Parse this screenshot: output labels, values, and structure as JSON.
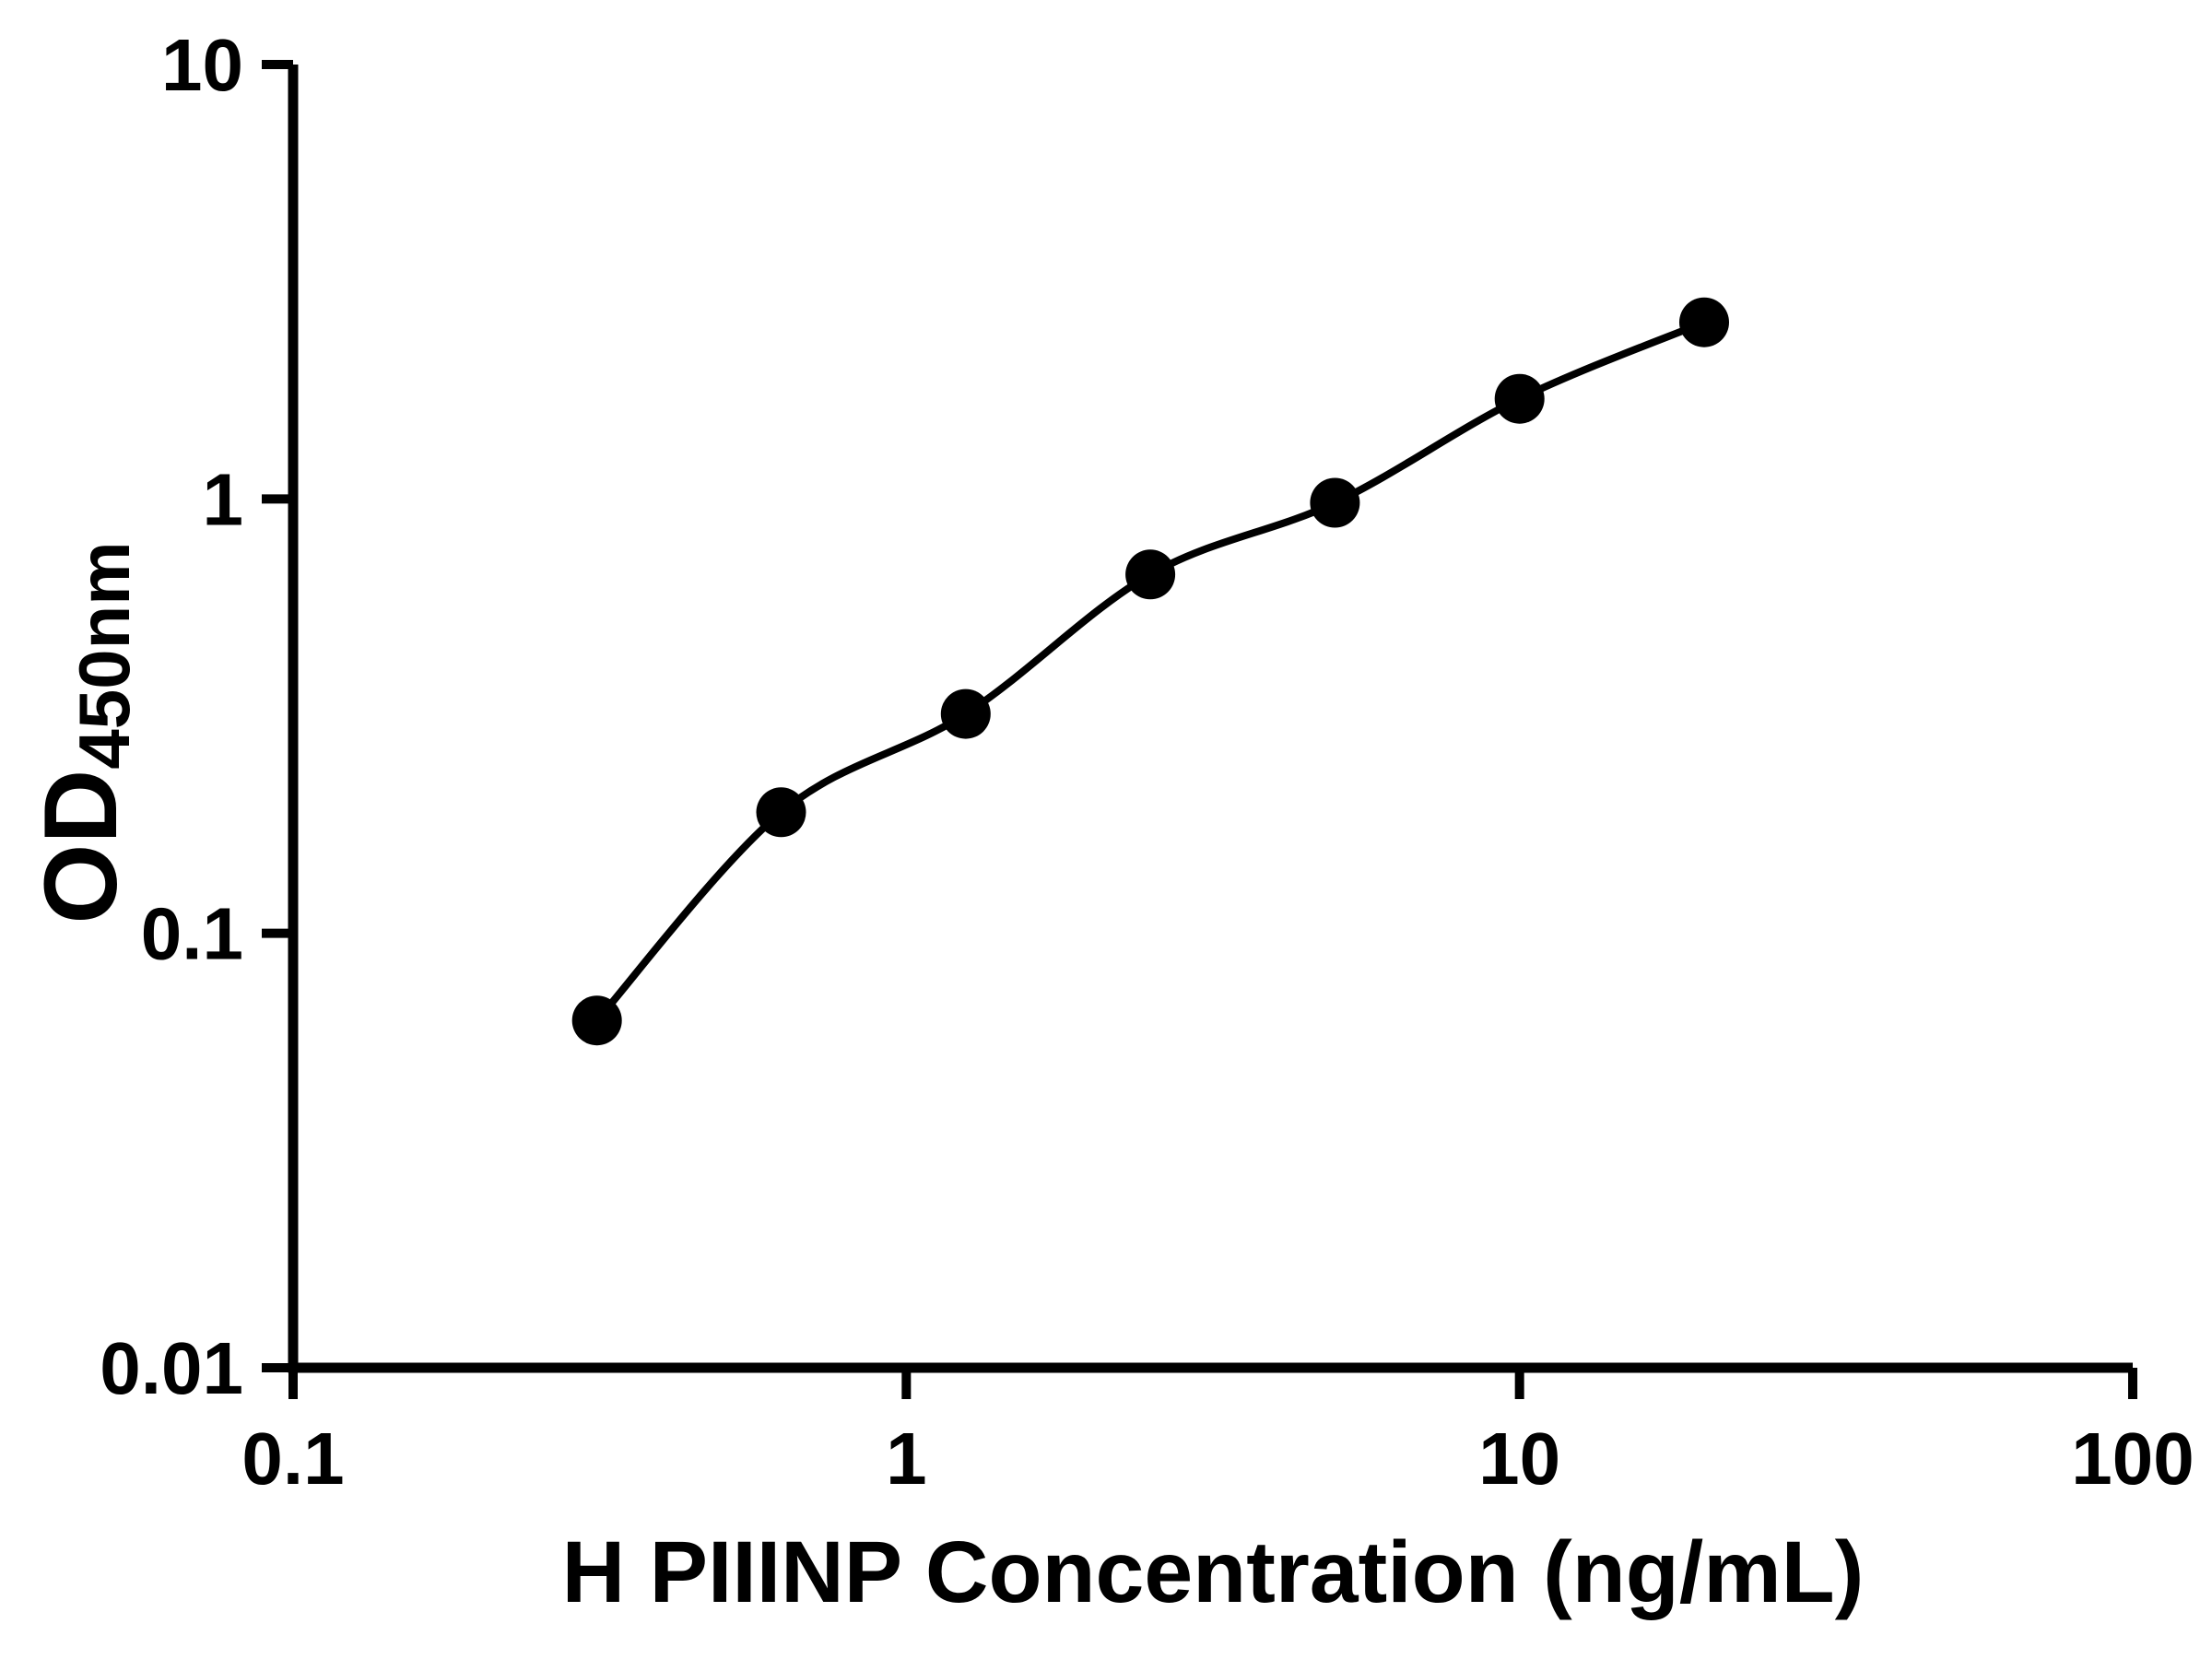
{
  "chart_data": {
    "type": "scatter",
    "title": "",
    "xlabel": "H PIIINP Concentration (ng/mL)",
    "ylabel": "OD450nm",
    "ylabel_main": "OD",
    "ylabel_sub": "450nm",
    "x_scale": "log",
    "y_scale": "log",
    "xlim": [
      0.1,
      100
    ],
    "ylim": [
      0.01,
      10
    ],
    "x_ticks": [
      0.1,
      1,
      10,
      100
    ],
    "x_tick_labels": [
      "0.1",
      "1",
      "10",
      "100"
    ],
    "y_ticks": [
      0.01,
      0.1,
      1,
      10
    ],
    "y_tick_labels": [
      "0.01",
      "0.1",
      "1",
      "10"
    ],
    "points": [
      {
        "x": 0.313,
        "y": 0.063
      },
      {
        "x": 0.625,
        "y": 0.19
      },
      {
        "x": 1.25,
        "y": 0.32
      },
      {
        "x": 2.5,
        "y": 0.67
      },
      {
        "x": 5,
        "y": 0.98
      },
      {
        "x": 10,
        "y": 1.7
      },
      {
        "x": 20,
        "y": 2.55
      }
    ],
    "grid": false,
    "legend": "none",
    "marker_color": "#000000",
    "line_color": "#000000",
    "axis_color": "#000000",
    "background": "#ffffff"
  }
}
